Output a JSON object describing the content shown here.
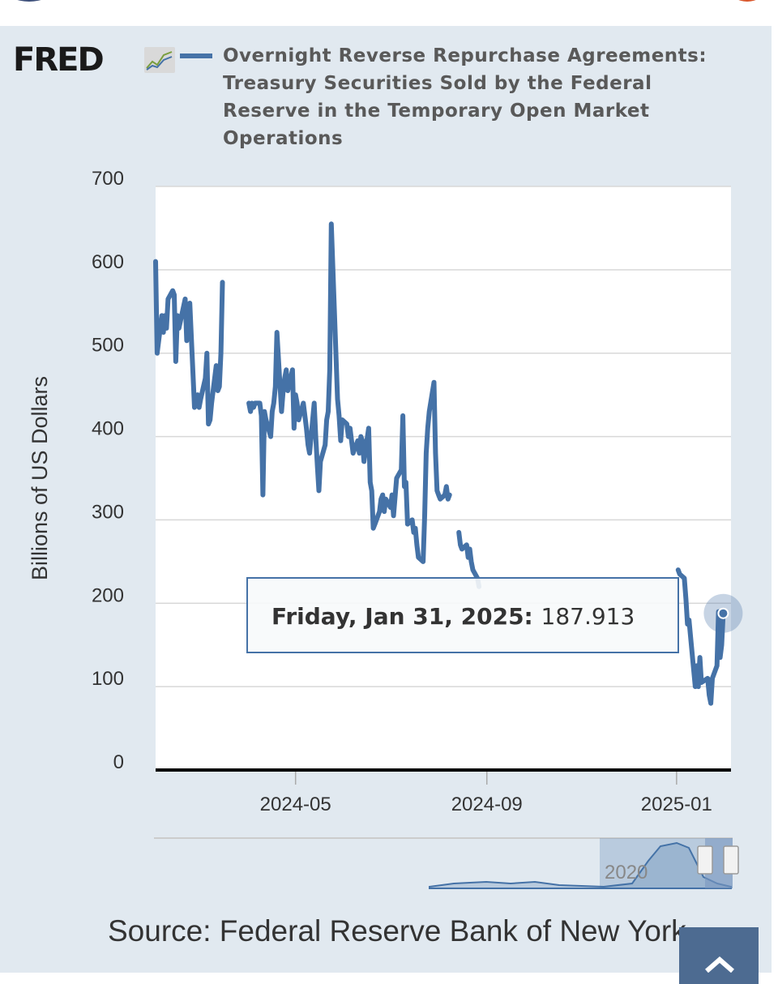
{
  "brand": {
    "logo_text": "FRED"
  },
  "chart_data": {
    "type": "line",
    "title": "Overnight Reverse Repurchase Agreements: Treasury Securities Sold by the Federal Reserve in the Temporary Open Market Operations",
    "ylabel": "Billions of US Dollars",
    "xlabel": "",
    "ylim": [
      0,
      700
    ],
    "yticks": [
      0,
      100,
      200,
      300,
      400,
      500,
      600,
      700
    ],
    "xticks": [
      {
        "label": "2024-05",
        "date": "2024-05-01"
      },
      {
        "label": "2024-09",
        "date": "2024-09-01"
      },
      {
        "label": "2025-01",
        "date": "2025-01-01"
      }
    ],
    "xlim": [
      "2024-02-01",
      "2025-02-05"
    ],
    "grid": true,
    "series": [
      {
        "name": "Overnight Reverse Repurchase Agreements: Treasury Securities Sold by the Federal Reserve in the Temporary Open Market Operations",
        "color": "#4572a7",
        "segments": [
          [
            [
              "2024-02-01",
              610
            ],
            [
              "2024-02-02",
              500
            ],
            [
              "2024-02-05",
              545
            ],
            [
              "2024-02-06",
              525
            ],
            [
              "2024-02-07",
              545
            ],
            [
              "2024-02-08",
              530
            ],
            [
              "2024-02-09",
              565
            ],
            [
              "2024-02-12",
              575
            ],
            [
              "2024-02-13",
              570
            ],
            [
              "2024-02-14",
              490
            ],
            [
              "2024-02-15",
              545
            ],
            [
              "2024-02-16",
              530
            ],
            [
              "2024-02-20",
              565
            ],
            [
              "2024-02-21",
              515
            ],
            [
              "2024-02-22",
              525
            ],
            [
              "2024-02-23",
              560
            ],
            [
              "2024-02-26",
              435
            ],
            [
              "2024-02-27",
              440
            ],
            [
              "2024-02-28",
              450
            ],
            [
              "2024-02-29",
              435
            ],
            [
              "2024-03-01",
              445
            ],
            [
              "2024-03-04",
              470
            ],
            [
              "2024-03-05",
              500
            ],
            [
              "2024-03-06",
              415
            ],
            [
              "2024-03-07",
              420
            ],
            [
              "2024-03-08",
              440
            ],
            [
              "2024-03-11",
              485
            ],
            [
              "2024-03-12",
              455
            ],
            [
              "2024-03-13",
              460
            ],
            [
              "2024-03-14",
              500
            ],
            [
              "2024-03-15",
              585
            ]
          ],
          [
            [
              "2024-04-01",
              440
            ],
            [
              "2024-04-02",
              430
            ],
            [
              "2024-04-03",
              440
            ],
            [
              "2024-04-04",
              435
            ],
            [
              "2024-04-05",
              440
            ],
            [
              "2024-04-08",
              440
            ],
            [
              "2024-04-09",
              425
            ],
            [
              "2024-04-10",
              330
            ],
            [
              "2024-04-11",
              430
            ],
            [
              "2024-04-12",
              420
            ],
            [
              "2024-04-15",
              400
            ],
            [
              "2024-04-16",
              430
            ],
            [
              "2024-04-17",
              440
            ],
            [
              "2024-04-18",
              460
            ],
            [
              "2024-04-19",
              525
            ],
            [
              "2024-04-22",
              430
            ],
            [
              "2024-04-23",
              455
            ],
            [
              "2024-04-24",
              470
            ],
            [
              "2024-04-25",
              480
            ],
            [
              "2024-04-26",
              455
            ],
            [
              "2024-04-29",
              480
            ],
            [
              "2024-04-30",
              410
            ],
            [
              "2024-05-01",
              450
            ],
            [
              "2024-05-02",
              440
            ],
            [
              "2024-05-03",
              420
            ],
            [
              "2024-05-06",
              440
            ],
            [
              "2024-05-07",
              425
            ],
            [
              "2024-05-08",
              410
            ],
            [
              "2024-05-09",
              390
            ],
            [
              "2024-05-10",
              380
            ],
            [
              "2024-05-13",
              440
            ],
            [
              "2024-05-14",
              400
            ],
            [
              "2024-05-15",
              365
            ],
            [
              "2024-05-16",
              335
            ],
            [
              "2024-05-17",
              370
            ],
            [
              "2024-05-20",
              390
            ],
            [
              "2024-05-21",
              420
            ],
            [
              "2024-05-22",
              430
            ],
            [
              "2024-05-23",
              480
            ],
            [
              "2024-05-24",
              655
            ],
            [
              "2024-05-28",
              445
            ],
            [
              "2024-05-29",
              425
            ],
            [
              "2024-05-30",
              395
            ],
            [
              "2024-05-31",
              420
            ],
            [
              "2024-06-03",
              415
            ],
            [
              "2024-06-04",
              400
            ],
            [
              "2024-06-05",
              410
            ],
            [
              "2024-06-06",
              395
            ],
            [
              "2024-06-07",
              380
            ],
            [
              "2024-06-10",
              395
            ],
            [
              "2024-06-11",
              380
            ],
            [
              "2024-06-12",
              400
            ],
            [
              "2024-06-13",
              395
            ],
            [
              "2024-06-14",
              370
            ],
            [
              "2024-06-17",
              410
            ],
            [
              "2024-06-18",
              345
            ],
            [
              "2024-06-19",
              335
            ],
            [
              "2024-06-20",
              290
            ],
            [
              "2024-06-21",
              295
            ],
            [
              "2024-06-24",
              310
            ],
            [
              "2024-06-25",
              325
            ],
            [
              "2024-06-26",
              330
            ],
            [
              "2024-06-27",
              310
            ],
            [
              "2024-06-28",
              325
            ],
            [
              "2024-07-01",
              315
            ],
            [
              "2024-07-02",
              330
            ],
            [
              "2024-07-03",
              305
            ],
            [
              "2024-07-05",
              350
            ],
            [
              "2024-07-08",
              360
            ],
            [
              "2024-07-09",
              425
            ],
            [
              "2024-07-10",
              340
            ],
            [
              "2024-07-11",
              345
            ],
            [
              "2024-07-12",
              295
            ],
            [
              "2024-07-15",
              300
            ],
            [
              "2024-07-16",
              285
            ],
            [
              "2024-07-17",
              290
            ],
            [
              "2024-07-18",
              270
            ],
            [
              "2024-07-19",
              255
            ],
            [
              "2024-07-22",
              250
            ],
            [
              "2024-07-23",
              305
            ],
            [
              "2024-07-24",
              380
            ],
            [
              "2024-07-25",
              410
            ],
            [
              "2024-07-26",
              430
            ],
            [
              "2024-07-29",
              465
            ],
            [
              "2024-07-30",
              380
            ],
            [
              "2024-07-31",
              335
            ],
            [
              "2024-08-01",
              330
            ],
            [
              "2024-08-02",
              325
            ],
            [
              "2024-08-05",
              330
            ],
            [
              "2024-08-06",
              340
            ],
            [
              "2024-08-07",
              325
            ],
            [
              "2024-08-08",
              330
            ]
          ],
          [
            [
              "2024-08-14",
              285
            ],
            [
              "2024-08-15",
              270
            ],
            [
              "2024-08-16",
              265
            ],
            [
              "2024-08-19",
              270
            ],
            [
              "2024-08-20",
              255
            ],
            [
              "2024-08-21",
              265
            ],
            [
              "2024-08-22",
              250
            ],
            [
              "2024-08-23",
              240
            ],
            [
              "2024-08-26",
              230
            ],
            [
              "2024-08-27",
              220
            ]
          ],
          [
            [
              "2025-01-02",
              240
            ],
            [
              "2025-01-03",
              235
            ],
            [
              "2025-01-06",
              230
            ],
            [
              "2025-01-07",
              205
            ],
            [
              "2025-01-08",
              175
            ],
            [
              "2025-01-09",
              180
            ],
            [
              "2025-01-10",
              160
            ],
            [
              "2025-01-13",
              100
            ],
            [
              "2025-01-14",
              125
            ],
            [
              "2025-01-15",
              100
            ],
            [
              "2025-01-16",
              135
            ],
            [
              "2025-01-17",
              105
            ],
            [
              "2025-01-21",
              110
            ],
            [
              "2025-01-22",
              90
            ],
            [
              "2025-01-23",
              80
            ],
            [
              "2025-01-24",
              110
            ],
            [
              "2025-01-27",
              125
            ],
            [
              "2025-01-28",
              190
            ],
            [
              "2025-01-29",
              135
            ],
            [
              "2025-01-30",
              150
            ],
            [
              "2025-01-31",
              187.913
            ]
          ]
        ]
      }
    ],
    "tooltip": {
      "date_label": "Friday, Jan 31, 2025:",
      "value": 187.913,
      "value_label": "187.913"
    },
    "navigator": {
      "year_label": "2020"
    }
  },
  "source": {
    "label": "Source: Federal Reserve Bank of New York"
  }
}
